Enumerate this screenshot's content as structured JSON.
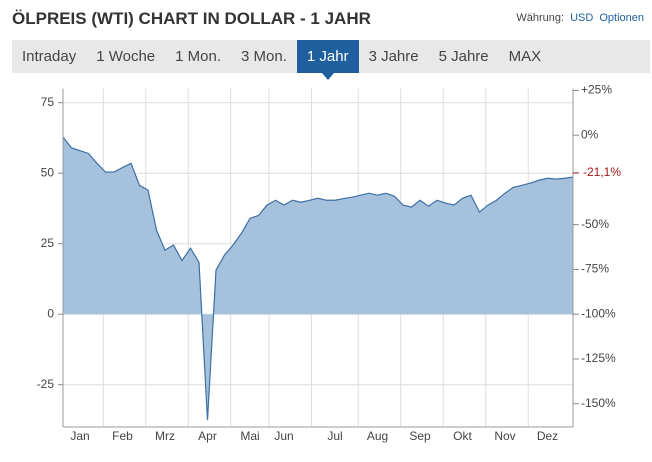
{
  "header": {
    "title": "ÖLPREIS (WTI) CHART IN DOLLAR - 1 JAHR",
    "currency_label": "Währung:",
    "currency": "USD",
    "options": "Optionen"
  },
  "tabs": {
    "items": [
      "Intraday",
      "1 Woche",
      "1 Mon.",
      "3 Mon.",
      "1 Jahr",
      "3 Jahre",
      "5 Jahre",
      "MAX"
    ],
    "active": 4
  },
  "chart_data": {
    "type": "area",
    "color": "#3d6fa3",
    "fill": "#a6c1dc",
    "grid": true,
    "categories": [
      null,
      null,
      "Jan",
      null,
      null,
      null,
      null,
      "Feb",
      null,
      null,
      null,
      null,
      "Mrz",
      null,
      null,
      null,
      null,
      "Apr",
      null,
      null,
      null,
      null,
      "Mai",
      null,
      null,
      null,
      "Jun",
      null,
      null,
      null,
      null,
      null,
      "Jul",
      null,
      null,
      null,
      null,
      "Aug",
      null,
      null,
      null,
      null,
      "Sep",
      null,
      null,
      null,
      null,
      "Okt",
      null,
      null,
      null,
      null,
      "Nov",
      null,
      null,
      null,
      null,
      "Dez",
      null,
      null,
      null
    ],
    "values": [
      62.8,
      59,
      58,
      57,
      53.5,
      50.4,
      50.4,
      52,
      53.5,
      45.7,
      44,
      29.8,
      22.7,
      24.5,
      19,
      23.4,
      18.4,
      -37.6,
      15.6,
      21,
      24.5,
      28.7,
      34,
      35,
      38.7,
      40.4,
      38.7,
      40.4,
      39.7,
      40.4,
      41.1,
      40.4,
      40.4,
      41,
      41.5,
      42.2,
      42.9,
      42.2,
      42.9,
      41.8,
      38.7,
      38,
      40.4,
      38.3,
      40.4,
      39.4,
      38.7,
      41.1,
      42.2,
      36.2,
      38.7,
      40.4,
      42.9,
      45,
      45.7,
      46.5,
      47.5,
      48.2,
      47.9,
      48.2,
      48.6
    ],
    "ylim": [
      -40,
      80
    ],
    "yticks": [
      75,
      50,
      25,
      0,
      -25
    ],
    "y2lim": [
      -163,
      26
    ],
    "y2ticks": [
      {
        "value": 25,
        "label": "+25%"
      },
      {
        "value": 0,
        "label": "0%"
      },
      {
        "value": -50,
        "label": "-50%"
      },
      {
        "value": -75,
        "label": "-75%"
      },
      {
        "value": -100,
        "label": "-100%"
      },
      {
        "value": -125,
        "label": "-125%"
      },
      {
        "value": -150,
        "label": "-150%"
      }
    ],
    "last_value": {
      "value": -21.1,
      "label": "-21,1%",
      "color": "#a01818"
    }
  }
}
